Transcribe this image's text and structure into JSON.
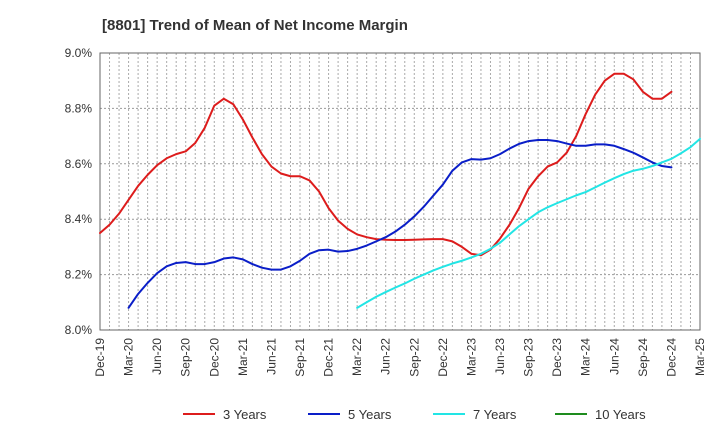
{
  "chart_data": {
    "type": "line",
    "title": "[8801]  Trend of Mean of Net Income Margin",
    "xlabel": "",
    "ylabel": "",
    "ylim": [
      8.0,
      9.0
    ],
    "yticks": [
      "8.0%",
      "8.2%",
      "8.4%",
      "8.6%",
      "8.8%",
      "9.0%"
    ],
    "ytick_values": [
      8.0,
      8.2,
      8.4,
      8.6,
      8.8,
      9.0
    ],
    "xticks": [
      "Dec-19",
      "Mar-20",
      "Jun-20",
      "Sep-20",
      "Dec-20",
      "Mar-21",
      "Jun-21",
      "Sep-21",
      "Dec-21",
      "Mar-22",
      "Jun-22",
      "Sep-22",
      "Dec-22",
      "Mar-23",
      "Jun-23",
      "Sep-23",
      "Dec-23",
      "Mar-24",
      "Jun-24",
      "Sep-24",
      "Dec-24",
      "Mar-25"
    ],
    "x_start": "2019-12",
    "x_end": "2025-03",
    "grid": true,
    "legend_position": "bottom",
    "series": [
      {
        "name": "3 Years",
        "color": "#dd1c1c",
        "start": "2019-12",
        "values": [
          8.35,
          8.38,
          8.42,
          8.47,
          8.52,
          8.56,
          8.595,
          8.62,
          8.635,
          8.645,
          8.675,
          8.73,
          8.81,
          8.835,
          8.815,
          8.76,
          8.695,
          8.635,
          8.59,
          8.565,
          8.555,
          8.555,
          8.54,
          8.5,
          8.44,
          8.395,
          8.365,
          8.345,
          8.335,
          8.328,
          8.326,
          8.325,
          8.325,
          8.326,
          8.327,
          8.328,
          8.328,
          8.32,
          8.3,
          8.275,
          8.27,
          8.29,
          8.33,
          8.38,
          8.44,
          8.51,
          8.555,
          8.59,
          8.605,
          8.64,
          8.7,
          8.78,
          8.85,
          8.9,
          8.925,
          8.925,
          8.905,
          8.86,
          8.835,
          8.835,
          8.86
        ]
      },
      {
        "name": "5 Years",
        "color": "#0a1ec8",
        "start": "2020-03",
        "values": [
          8.08,
          8.13,
          8.17,
          8.205,
          8.23,
          8.242,
          8.245,
          8.238,
          8.238,
          8.245,
          8.258,
          8.262,
          8.255,
          8.238,
          8.225,
          8.218,
          8.218,
          8.23,
          8.25,
          8.275,
          8.288,
          8.29,
          8.283,
          8.285,
          8.293,
          8.305,
          8.32,
          8.335,
          8.355,
          8.38,
          8.41,
          8.445,
          8.485,
          8.525,
          8.575,
          8.605,
          8.617,
          8.615,
          8.62,
          8.635,
          8.655,
          8.672,
          8.682,
          8.686,
          8.686,
          8.682,
          8.673,
          8.665,
          8.665,
          8.67,
          8.67,
          8.665,
          8.653,
          8.64,
          8.623,
          8.605,
          8.592,
          8.587
        ]
      },
      {
        "name": "7 Years",
        "color": "#22e5e5",
        "start": "2022-03",
        "values": [
          8.08,
          8.1,
          8.12,
          8.137,
          8.153,
          8.168,
          8.185,
          8.2,
          8.215,
          8.228,
          8.24,
          8.25,
          8.262,
          8.275,
          8.293,
          8.315,
          8.345,
          8.375,
          8.4,
          8.425,
          8.443,
          8.458,
          8.472,
          8.486,
          8.498,
          8.515,
          8.532,
          8.548,
          8.563,
          8.575,
          8.582,
          8.592,
          8.605,
          8.618,
          8.638,
          8.66,
          8.69
        ]
      },
      {
        "name": "10 Years",
        "color": "#1e8c1e",
        "start": "2025-03",
        "values": []
      }
    ]
  }
}
